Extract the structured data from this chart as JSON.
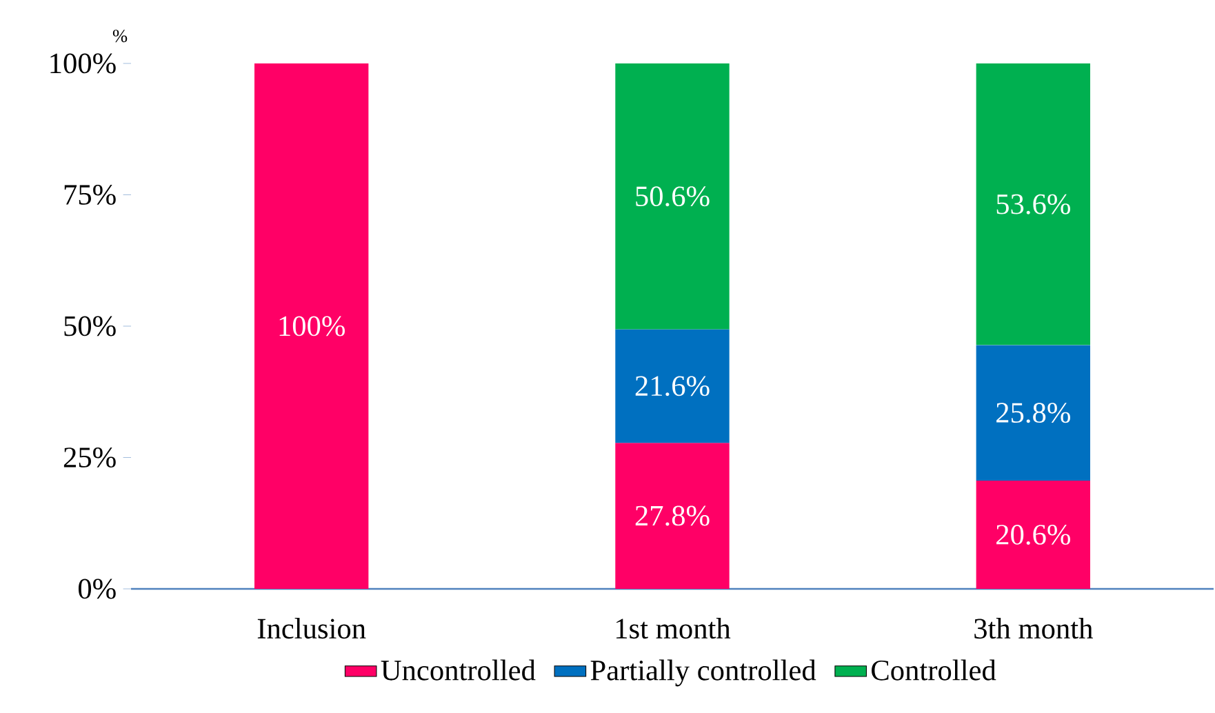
{
  "chart_data": {
    "type": "bar",
    "stacked": true,
    "ylabel": "%",
    "categories": [
      "Inclusion",
      "1st month",
      "3th month"
    ],
    "series": [
      {
        "name": "Uncontrolled",
        "color": "#ff0066",
        "values": [
          100,
          27.8,
          20.6
        ],
        "value_labels": [
          "100%",
          "27.8%",
          "20.6%"
        ]
      },
      {
        "name": "Partially controlled",
        "color": "#0070c0",
        "values": [
          null,
          21.6,
          25.8
        ],
        "value_labels": [
          null,
          "21.6%",
          "25.8%"
        ]
      },
      {
        "name": "Controlled",
        "color": "#00b050",
        "values": [
          null,
          50.6,
          53.6
        ],
        "value_labels": [
          null,
          "50.6%",
          "53.6%"
        ]
      }
    ],
    "ylim": [
      0,
      100
    ],
    "yticks": [
      {
        "value": 0,
        "label": "0%"
      },
      {
        "value": 25,
        "label": "25%"
      },
      {
        "value": 50,
        "label": "50%"
      },
      {
        "value": 75,
        "label": "75%"
      },
      {
        "value": 100,
        "label": "100%"
      }
    ],
    "legend": "bottom",
    "grid": false
  }
}
